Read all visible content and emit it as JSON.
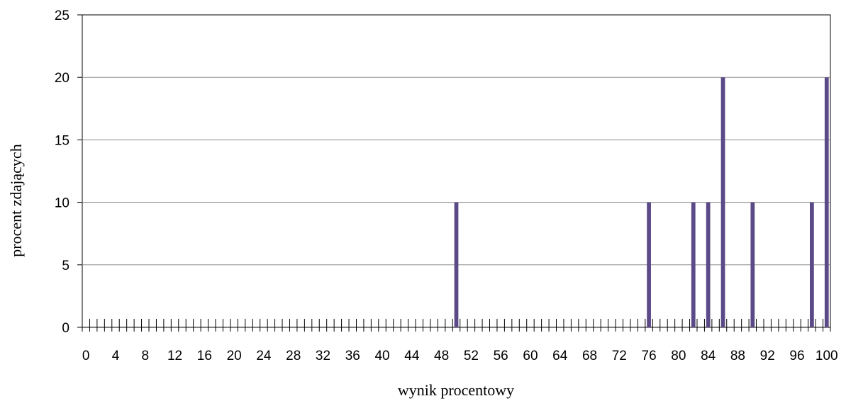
{
  "chart_data": {
    "type": "bar",
    "xlabel": "wynik procentowy",
    "ylabel": "procent zdających",
    "ylim": [
      0,
      25
    ],
    "yticks": [
      0,
      5,
      10,
      15,
      20,
      25
    ],
    "xlim": [
      0,
      100
    ],
    "x_tick_step": 1,
    "x_label_step": 4,
    "grid": "horizontal",
    "legend": "none",
    "bar_color": "#5b4a87",
    "points": [
      {
        "x": 50,
        "y": 10
      },
      {
        "x": 76,
        "y": 10
      },
      {
        "x": 82,
        "y": 10
      },
      {
        "x": 84,
        "y": 10
      },
      {
        "x": 86,
        "y": 20
      },
      {
        "x": 90,
        "y": 10
      },
      {
        "x": 98,
        "y": 10
      },
      {
        "x": 100,
        "y": 20
      }
    ]
  }
}
